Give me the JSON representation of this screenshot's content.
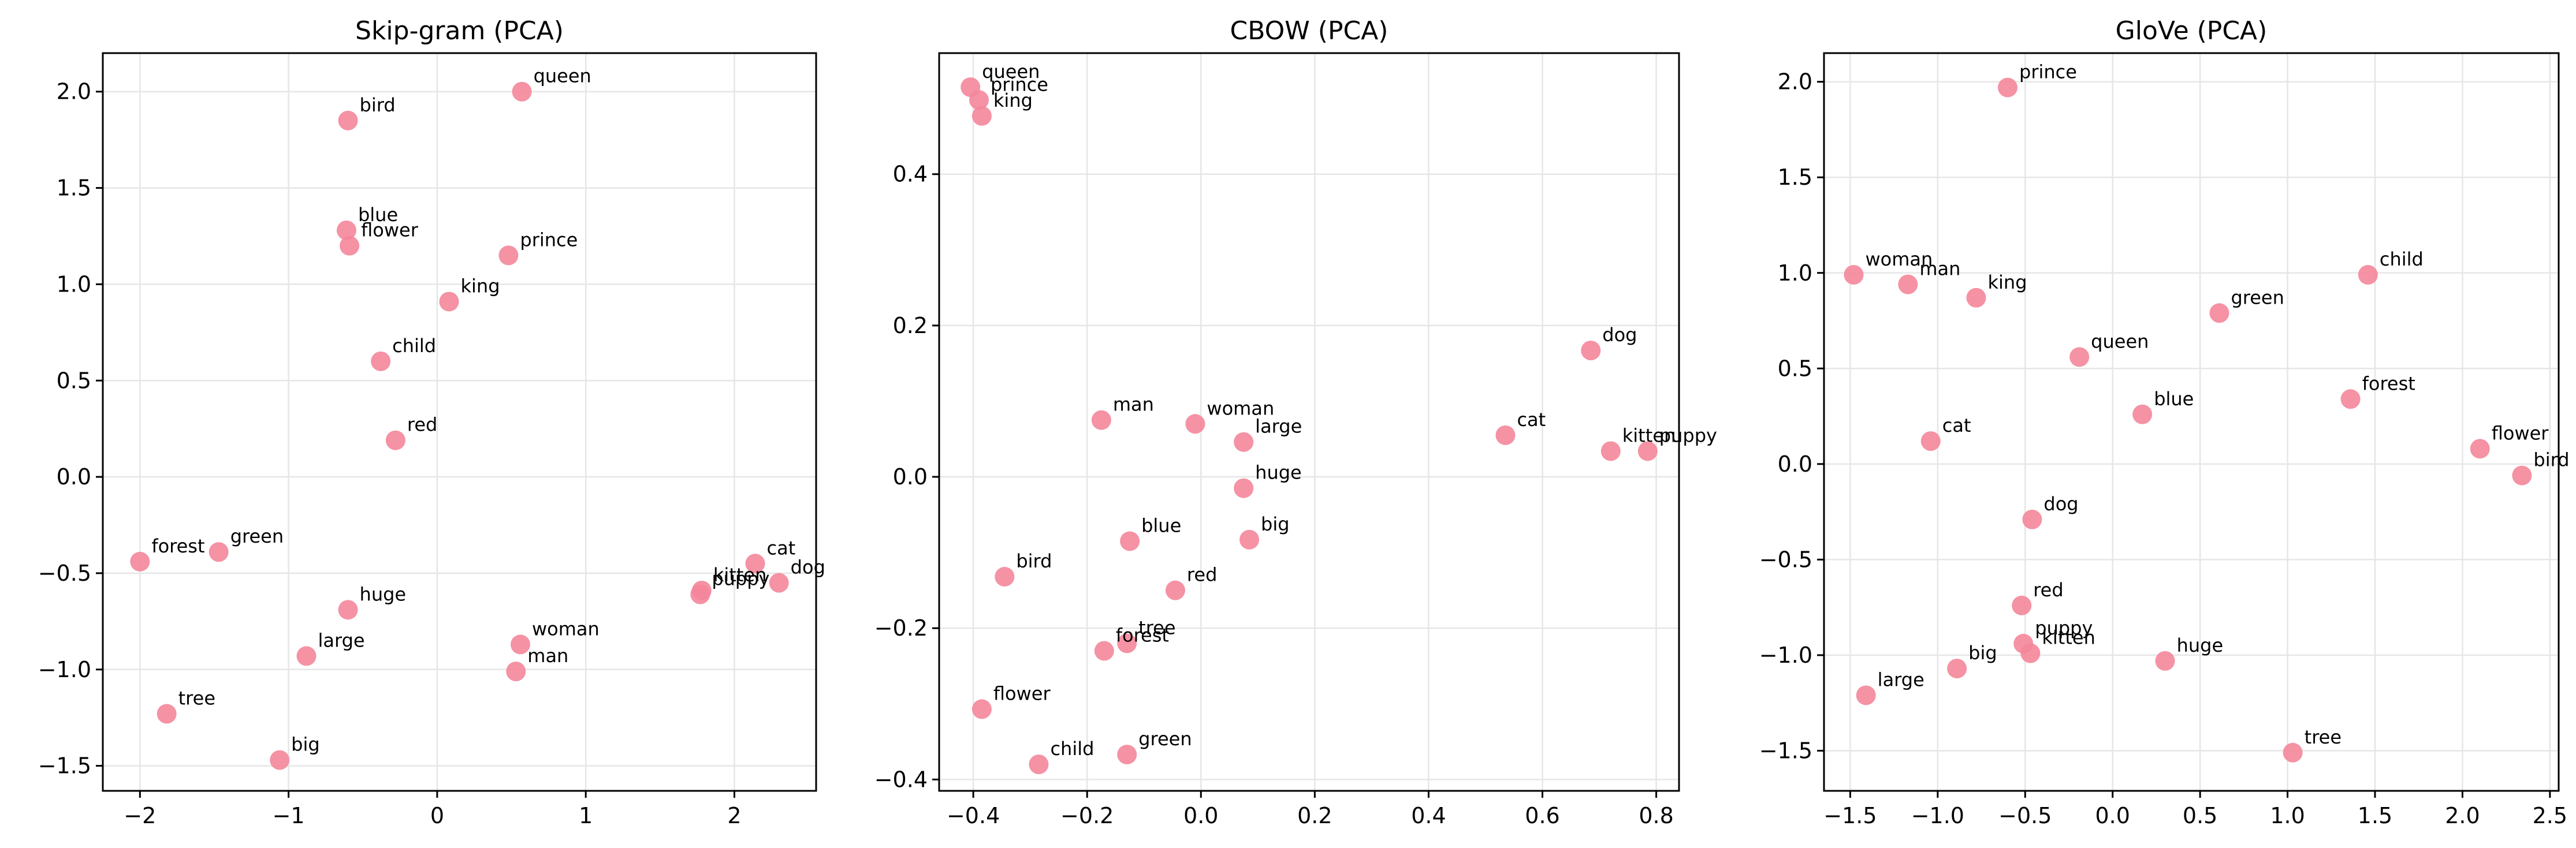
{
  "marker_color": "#f4869a",
  "chart_data": [
    {
      "type": "scatter",
      "title": "Skip-gram (PCA)",
      "xlabel": "",
      "ylabel": "",
      "xlim": [
        -2.25,
        2.55
      ],
      "ylim": [
        -1.63,
        2.2
      ],
      "xticks": [
        -2,
        -1,
        0,
        1,
        2
      ],
      "yticks": [
        -1.5,
        -1.0,
        -0.5,
        0.0,
        0.5,
        1.0,
        1.5,
        2.0
      ],
      "grid": true,
      "points": [
        {
          "label": "queen",
          "x": 0.57,
          "y": 2.0
        },
        {
          "label": "bird",
          "x": -0.6,
          "y": 1.85
        },
        {
          "label": "blue",
          "x": -0.61,
          "y": 1.28
        },
        {
          "label": "flower",
          "x": -0.59,
          "y": 1.2
        },
        {
          "label": "prince",
          "x": 0.48,
          "y": 1.15
        },
        {
          "label": "king",
          "x": 0.08,
          "y": 0.91
        },
        {
          "label": "child",
          "x": -0.38,
          "y": 0.6
        },
        {
          "label": "red",
          "x": -0.28,
          "y": 0.19
        },
        {
          "label": "forest",
          "x": -2.0,
          "y": -0.44
        },
        {
          "label": "green",
          "x": -1.47,
          "y": -0.39
        },
        {
          "label": "cat",
          "x": 2.14,
          "y": -0.45
        },
        {
          "label": "dog",
          "x": 2.3,
          "y": -0.55
        },
        {
          "label": "kitten",
          "x": 1.78,
          "y": -0.59
        },
        {
          "label": "puppy",
          "x": 1.77,
          "y": -0.61
        },
        {
          "label": "huge",
          "x": -0.6,
          "y": -0.69
        },
        {
          "label": "large",
          "x": -0.88,
          "y": -0.93
        },
        {
          "label": "woman",
          "x": 0.56,
          "y": -0.87
        },
        {
          "label": "man",
          "x": 0.53,
          "y": -1.01
        },
        {
          "label": "tree",
          "x": -1.82,
          "y": -1.23
        },
        {
          "label": "big",
          "x": -1.06,
          "y": -1.47
        }
      ]
    },
    {
      "type": "scatter",
      "title": "CBOW (PCA)",
      "xlabel": "",
      "ylabel": "",
      "xlim": [
        -0.46,
        0.84
      ],
      "ylim": [
        -0.415,
        0.56
      ],
      "xticks": [
        -0.4,
        -0.2,
        0.0,
        0.2,
        0.4,
        0.6,
        0.8
      ],
      "yticks": [
        -0.4,
        -0.2,
        0.0,
        0.2,
        0.4
      ],
      "grid": true,
      "points": [
        {
          "label": "queen",
          "x": -0.405,
          "y": 0.515
        },
        {
          "label": "prince",
          "x": -0.39,
          "y": 0.498
        },
        {
          "label": "king",
          "x": -0.385,
          "y": 0.477
        },
        {
          "label": "dog",
          "x": 0.685,
          "y": 0.167
        },
        {
          "label": "man",
          "x": -0.175,
          "y": 0.075
        },
        {
          "label": "woman",
          "x": -0.01,
          "y": 0.07
        },
        {
          "label": "large",
          "x": 0.075,
          "y": 0.046
        },
        {
          "label": "cat",
          "x": 0.535,
          "y": 0.055
        },
        {
          "label": "kitten",
          "x": 0.72,
          "y": 0.034
        },
        {
          "label": "puppy",
          "x": 0.785,
          "y": 0.034
        },
        {
          "label": "huge",
          "x": 0.075,
          "y": -0.015
        },
        {
          "label": "blue",
          "x": -0.125,
          "y": -0.085
        },
        {
          "label": "big",
          "x": 0.085,
          "y": -0.083
        },
        {
          "label": "bird",
          "x": -0.345,
          "y": -0.132
        },
        {
          "label": "red",
          "x": -0.045,
          "y": -0.15
        },
        {
          "label": "tree",
          "x": -0.13,
          "y": -0.22
        },
        {
          "label": "forest",
          "x": -0.17,
          "y": -0.23
        },
        {
          "label": "flower",
          "x": -0.385,
          "y": -0.307
        },
        {
          "label": "green",
          "x": -0.13,
          "y": -0.367
        },
        {
          "label": "child",
          "x": -0.285,
          "y": -0.38
        }
      ]
    },
    {
      "type": "scatter",
      "title": "GloVe (PCA)",
      "xlabel": "",
      "ylabel": "",
      "xlim": [
        -1.65,
        2.55
      ],
      "ylim": [
        -1.71,
        2.15
      ],
      "xticks": [
        -1.5,
        -1.0,
        -0.5,
        0.0,
        0.5,
        1.0,
        1.5,
        2.0,
        2.5
      ],
      "yticks": [
        -1.5,
        -1.0,
        -0.5,
        0.0,
        0.5,
        1.0,
        1.5,
        2.0
      ],
      "grid": true,
      "points": [
        {
          "label": "prince",
          "x": -0.6,
          "y": 1.97
        },
        {
          "label": "woman",
          "x": -1.48,
          "y": 0.99
        },
        {
          "label": "man",
          "x": -1.17,
          "y": 0.94
        },
        {
          "label": "king",
          "x": -0.78,
          "y": 0.87
        },
        {
          "label": "child",
          "x": 1.46,
          "y": 0.99
        },
        {
          "label": "green",
          "x": 0.61,
          "y": 0.79
        },
        {
          "label": "queen",
          "x": -0.19,
          "y": 0.56
        },
        {
          "label": "forest",
          "x": 1.36,
          "y": 0.34
        },
        {
          "label": "blue",
          "x": 0.17,
          "y": 0.26
        },
        {
          "label": "cat",
          "x": -1.04,
          "y": 0.12
        },
        {
          "label": "flower",
          "x": 2.1,
          "y": 0.08
        },
        {
          "label": "bird",
          "x": 2.34,
          "y": -0.06
        },
        {
          "label": "dog",
          "x": -0.46,
          "y": -0.29
        },
        {
          "label": "red",
          "x": -0.52,
          "y": -0.74
        },
        {
          "label": "puppy",
          "x": -0.51,
          "y": -0.94
        },
        {
          "label": "kitten",
          "x": -0.47,
          "y": -0.99
        },
        {
          "label": "huge",
          "x": 0.3,
          "y": -1.03
        },
        {
          "label": "big",
          "x": -0.89,
          "y": -1.07
        },
        {
          "label": "large",
          "x": -1.41,
          "y": -1.21
        },
        {
          "label": "tree",
          "x": 1.03,
          "y": -1.51
        }
      ]
    }
  ]
}
